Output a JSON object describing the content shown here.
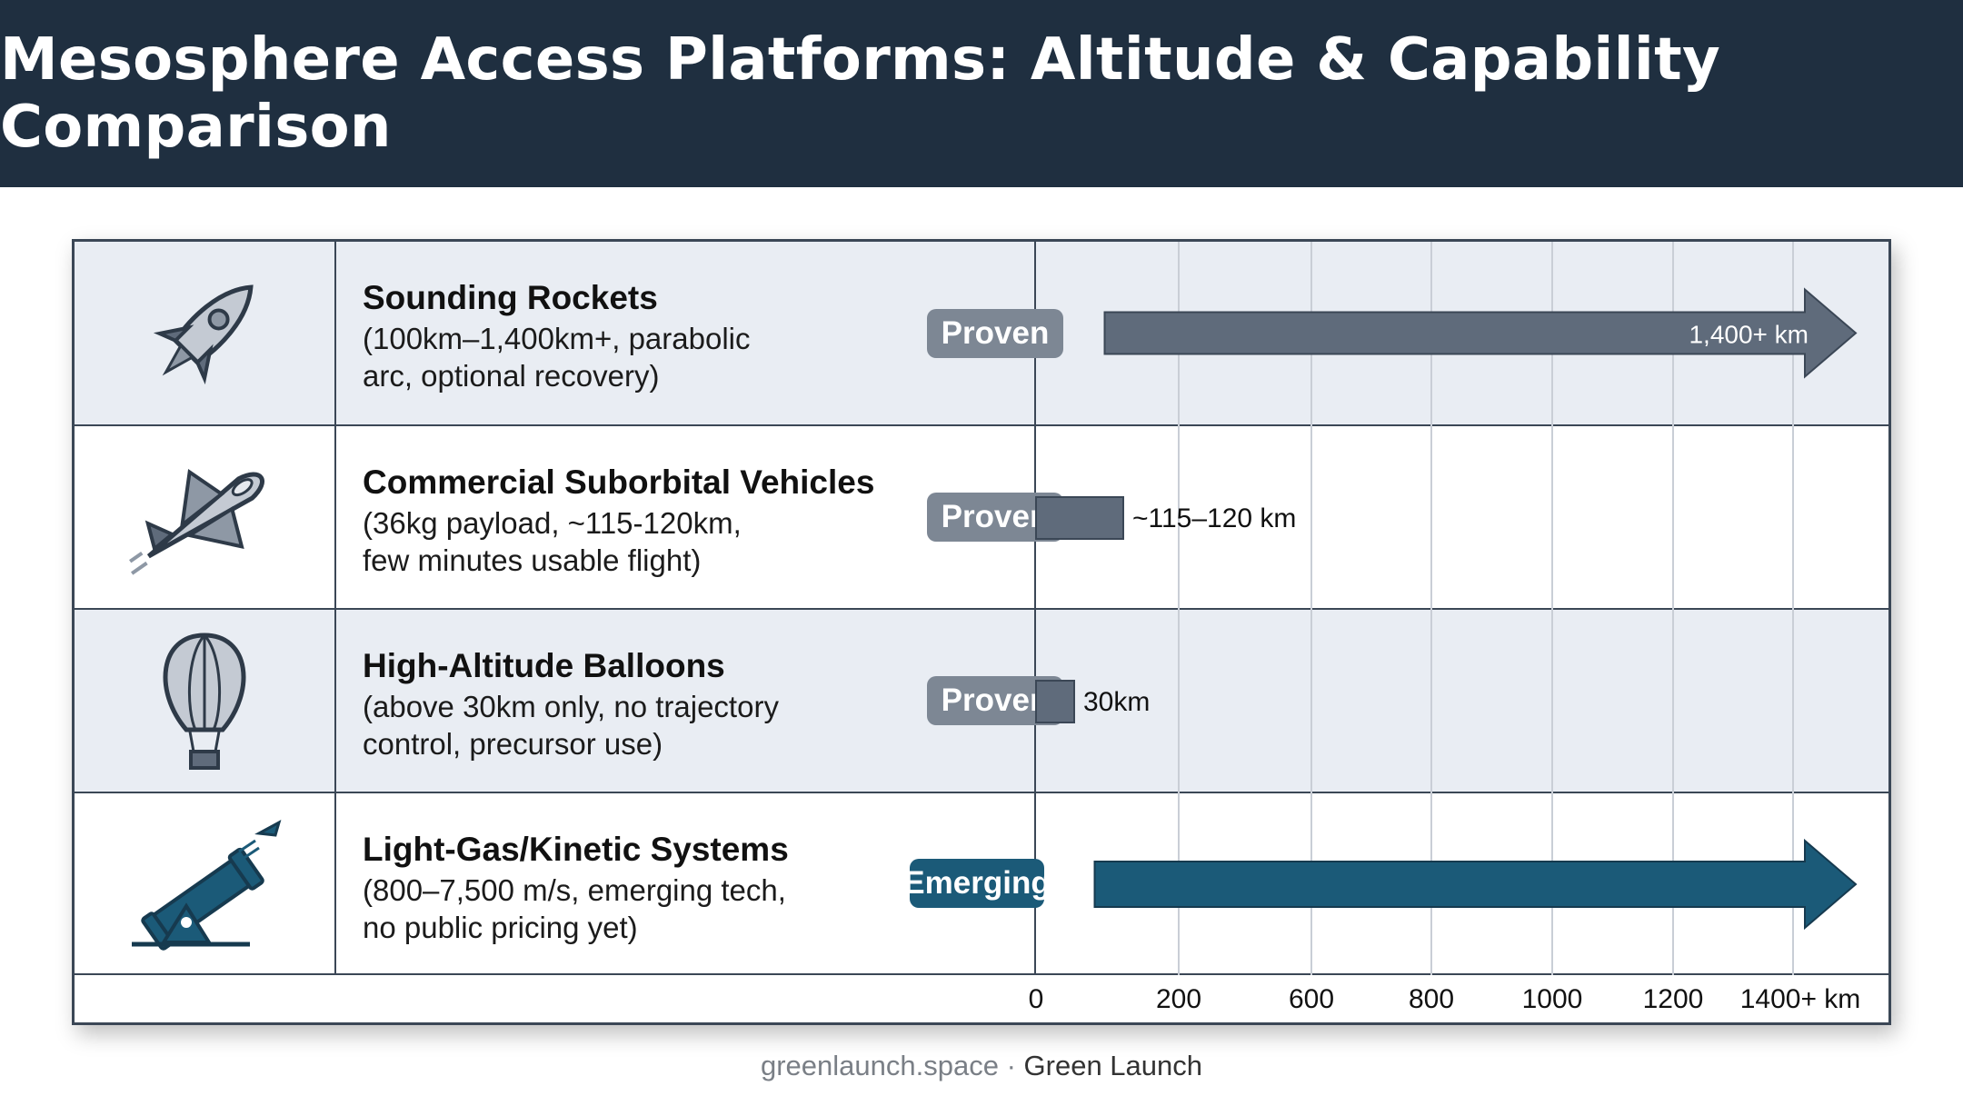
{
  "title": "Mesosphere Access Platforms: Altitude & Capability Comparison",
  "footer": {
    "site": "greenlaunch.space",
    "separator": " · ",
    "brand": "Green Launch"
  },
  "colors": {
    "header_bg": "#1f2f40",
    "proven_badge": "#7d8794",
    "emerging_badge": "#1b5a78",
    "proven_bar": "#5f6b7b",
    "emerging_bar": "#1b5a78",
    "row_shaded": "#e9edf3"
  },
  "rows": [
    {
      "icon": "rocket-icon",
      "name": "Sounding Rockets",
      "detail_line1": "(100km–1,400km+, parabolic",
      "detail_line2": "arc, optional recovery)",
      "status": "Proven"
    },
    {
      "icon": "spaceplane-icon",
      "name": "Commercial Suborbital Vehicles",
      "detail_line1": "(36kg payload, ~115-120km,",
      "detail_line2": "few minutes usable flight)",
      "status": "Proven"
    },
    {
      "icon": "balloon-icon",
      "name": "High-Altitude Balloons",
      "detail_line1": "(above 30km only, no trajectory",
      "detail_line2": "control, precursor use)",
      "status": "Proven"
    },
    {
      "icon": "cannon-icon",
      "name": "Light-Gas/Kinetic Systems",
      "detail_line1": "(800–7,500 m/s, emerging tech,",
      "detail_line2": "no public pricing yet)",
      "status": "Emerging"
    }
  ],
  "chart_data": {
    "type": "bar",
    "orientation": "horizontal",
    "x_tick_labels": [
      "0",
      "200",
      "600",
      "800",
      "1000",
      "1200",
      "1400+ km"
    ],
    "series": [
      {
        "name": "Sounding Rockets",
        "start": 100,
        "end": 1400,
        "arrow": true,
        "label": "1,400+ km",
        "status": "Proven"
      },
      {
        "name": "Commercial Suborbital Vehicles",
        "start": 0,
        "end": 120,
        "arrow": false,
        "label": "~115–120 km",
        "status": "Proven"
      },
      {
        "name": "High-Altitude Balloons",
        "start": 0,
        "end": 30,
        "arrow": false,
        "label": "30km",
        "status": "Proven"
      },
      {
        "name": "Light-Gas/Kinetic Systems",
        "start": 100,
        "end": 1400,
        "arrow": true,
        "label": "",
        "status": "Emerging"
      }
    ],
    "grid": true
  }
}
